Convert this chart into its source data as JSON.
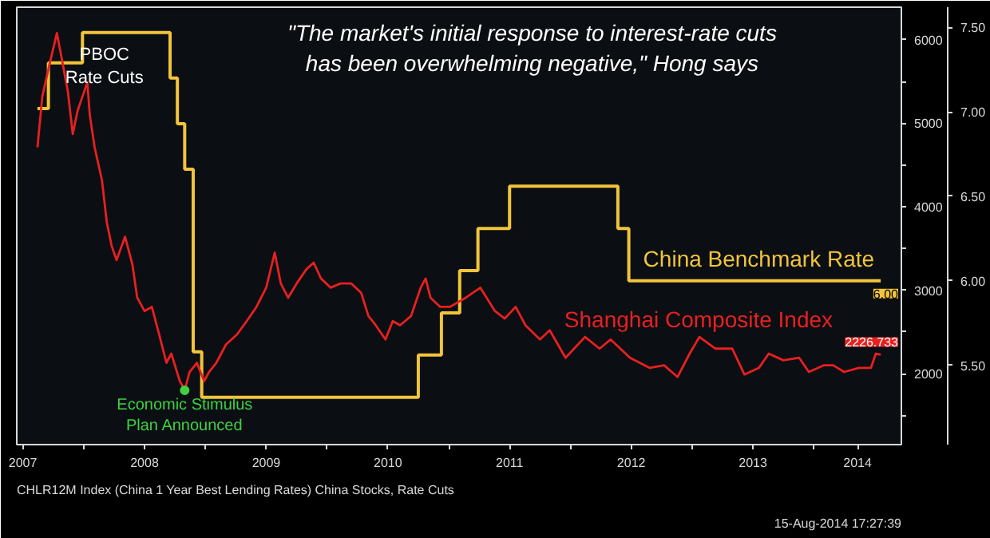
{
  "chart_data": {
    "type": "line",
    "annotations": [
      "\"The market's initial response to interest-rate cuts\nhas been overwhelming negative,\" Hong says",
      "PBOC\nRate Cuts",
      {
        "text": "Economic Stimulus\nPlan Announced",
        "x": 2008.83,
        "y": 1800
      },
      "CHLR12M Index (China 1 Year Best Lending Rates) China Stocks, Rate Cuts",
      "15-Aug-2014 17:27:39"
    ],
    "xlim": [
      2007.45,
      2014.72
    ],
    "xticks": [
      {
        "value": 2008,
        "label": null
      },
      {
        "value": 2009,
        "label": null
      },
      {
        "value": 2010,
        "label": null
      },
      {
        "value": 2011,
        "label": null
      },
      {
        "value": 2012,
        "label": null
      },
      {
        "value": 2013,
        "label": null
      },
      {
        "value": 2014,
        "label": null
      },
      {
        "value": 2007.5,
        "label": "2007"
      },
      {
        "value": 2008.5,
        "label": "2008"
      },
      {
        "value": 2009.5,
        "label": "2009"
      },
      {
        "value": 2010.5,
        "label": "2010"
      },
      {
        "value": 2011.5,
        "label": "2011"
      },
      {
        "value": 2012.5,
        "label": "2012"
      },
      {
        "value": 2013.5,
        "label": "2013"
      },
      {
        "value": 2014.36,
        "label": "2014"
      }
    ],
    "ylim": [
      1150,
      6390
    ],
    "yticks": [
      {
        "value": 1500,
        "label": null
      },
      2000,
      {
        "value": 2500,
        "label": null
      },
      3000,
      {
        "value": 3500,
        "label": null
      },
      4000,
      {
        "value": 4500,
        "label": null
      },
      5000,
      {
        "value": 5500,
        "label": null
      },
      6000
    ],
    "y2lim": [
      5.03,
      7.62
    ],
    "y2ticks": [
      {
        "value": 5.5,
        "label": "5.50"
      },
      {
        "value": 6.0,
        "label": "6.00"
      },
      {
        "value": 6.5,
        "label": "6.50"
      },
      {
        "value": 7.0,
        "label": "7.00"
      },
      {
        "value": 7.5,
        "label": "7.50"
      }
    ],
    "series": [
      {
        "name": "China Benchmark Rate",
        "type": "step",
        "axis": "y2",
        "color": "#f2c43a",
        "x": [
          2007.62,
          2007.71,
          2007.99,
          2008.71,
          2008.77,
          2008.83,
          2008.9,
          2008.97,
          2010.75,
          2010.94,
          2011.09,
          2011.24,
          2011.5,
          2012.39,
          2012.48,
          2014.55
        ],
        "values": [
          7.02,
          7.29,
          7.47,
          7.2,
          6.93,
          6.66,
          5.58,
          5.31,
          5.56,
          5.81,
          6.06,
          6.31,
          6.56,
          6.31,
          6.0,
          6.0
        ],
        "value_labels": [
          null,
          null,
          null,
          null,
          null,
          null,
          null,
          null,
          null,
          null,
          null,
          null,
          null,
          null,
          null,
          "6.00"
        ]
      },
      {
        "name": "Shanghai Composite Index",
        "color": "#e8201f",
        "x": [
          2007.62,
          2007.66,
          2007.72,
          2007.78,
          2007.82,
          2007.87,
          2007.91,
          2007.95,
          2007.99,
          2008.03,
          2008.05,
          2008.09,
          2008.15,
          2008.19,
          2008.23,
          2008.27,
          2008.34,
          2008.4,
          2008.44,
          2008.5,
          2008.56,
          2008.62,
          2008.68,
          2008.72,
          2008.79,
          2008.83,
          2008.87,
          2008.93,
          2008.99,
          2009.03,
          2009.09,
          2009.17,
          2009.26,
          2009.34,
          2009.42,
          2009.5,
          2009.57,
          2009.62,
          2009.68,
          2009.75,
          2009.83,
          2009.89,
          2009.95,
          2010.03,
          2010.11,
          2010.2,
          2010.28,
          2010.34,
          2010.4,
          2010.48,
          2010.54,
          2010.6,
          2010.69,
          2010.77,
          2010.81,
          2010.85,
          2010.93,
          2011.01,
          2011.14,
          2011.26,
          2011.38,
          2011.46,
          2011.55,
          2011.63,
          2011.75,
          2011.83,
          2011.96,
          2012.12,
          2012.24,
          2012.33,
          2012.49,
          2012.65,
          2012.77,
          2012.88,
          2012.98,
          2013.06,
          2013.19,
          2013.33,
          2013.43,
          2013.55,
          2013.63,
          2013.75,
          2013.88,
          2013.96,
          2014.08,
          2014.16,
          2014.25,
          2014.37,
          2014.47,
          2014.51,
          2014.55
        ],
        "values": [
          4710,
          5320,
          5710,
          6080,
          5770,
          5380,
          4870,
          5150,
          5320,
          5490,
          5100,
          4710,
          4320,
          3810,
          3530,
          3360,
          3640,
          3310,
          2910,
          2750,
          2800,
          2470,
          2130,
          2240,
          1910,
          1800,
          2020,
          2130,
          1910,
          2020,
          2130,
          2350,
          2470,
          2630,
          2800,
          3030,
          3450,
          3080,
          2910,
          3080,
          3250,
          3330,
          3140,
          3030,
          3080,
          3080,
          2970,
          2690,
          2580,
          2410,
          2630,
          2580,
          2690,
          3030,
          3140,
          2910,
          2800,
          2800,
          2910,
          3030,
          2750,
          2660,
          2800,
          2580,
          2410,
          2520,
          2190,
          2440,
          2300,
          2410,
          2190,
          2070,
          2100,
          1960,
          2240,
          2440,
          2300,
          2300,
          1990,
          2070,
          2240,
          2160,
          2190,
          2020,
          2100,
          2100,
          2020,
          2070,
          2070,
          2240,
          2226.733
        ],
        "value_labels": [
          null,
          null,
          null,
          null,
          null,
          null,
          null,
          null,
          null,
          null,
          null,
          null,
          null,
          null,
          null,
          null,
          null,
          null,
          null,
          null,
          null,
          null,
          null,
          null,
          null,
          null,
          null,
          null,
          null,
          null,
          null,
          null,
          null,
          null,
          null,
          null,
          null,
          null,
          null,
          null,
          null,
          null,
          null,
          null,
          null,
          null,
          null,
          null,
          null,
          null,
          null,
          null,
          null,
          null,
          null,
          null,
          null,
          null,
          null,
          null,
          null,
          null,
          null,
          null,
          null,
          null,
          null,
          null,
          null,
          null,
          null,
          null,
          null,
          null,
          null,
          null,
          null,
          null,
          null,
          null,
          null,
          null,
          null,
          null,
          null,
          null,
          null,
          null,
          null,
          null,
          "2226.733"
        ]
      }
    ]
  }
}
